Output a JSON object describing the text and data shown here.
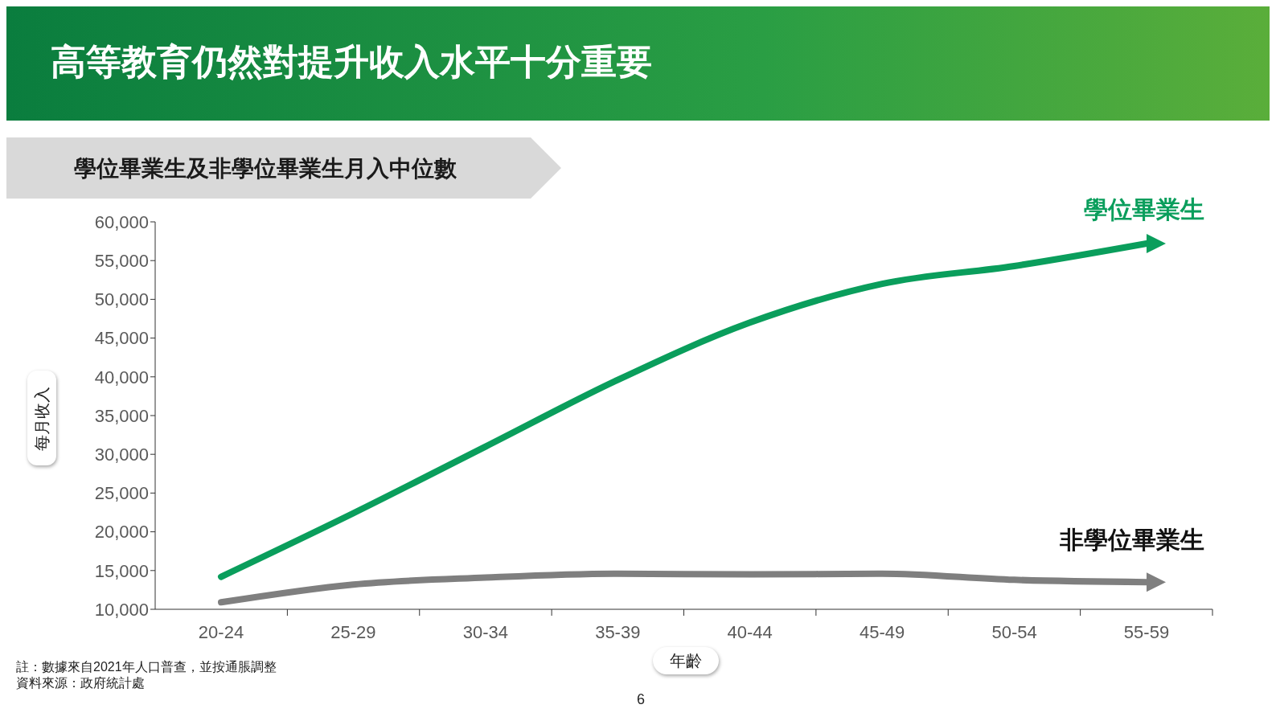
{
  "chart_data": {
    "type": "line",
    "title": "高等教育仍然對提升收入水平十分重要",
    "subtitle": "學位畢業生及非學位畢業生月入中位數",
    "xlabel": "年齡",
    "ylabel": "每月收入",
    "categories": [
      "20-24",
      "25-29",
      "30-34",
      "35-39",
      "40-44",
      "45-49",
      "50-54",
      "55-59"
    ],
    "series": [
      {
        "name": "學位畢業生",
        "color": "#0a9e5c",
        "values": [
          14200,
          22400,
          31000,
          39600,
          47000,
          52000,
          54300,
          57200
        ]
      },
      {
        "name": "非學位畢業生",
        "color": "#7f7f7f",
        "values": [
          10900,
          13200,
          14100,
          14600,
          14500,
          14600,
          13800,
          13500
        ]
      }
    ],
    "ylim": [
      10000,
      60000
    ],
    "yticks": [
      {
        "value": 10000,
        "label": "10,000"
      },
      {
        "value": 15000,
        "label": "15,000"
      },
      {
        "value": 20000,
        "label": "20,000"
      },
      {
        "value": 25000,
        "label": "25,000"
      },
      {
        "value": 30000,
        "label": "30,000"
      },
      {
        "value": 35000,
        "label": "35,000"
      },
      {
        "value": 40000,
        "label": "40,000"
      },
      {
        "value": 45000,
        "label": "45,000"
      },
      {
        "value": 50000,
        "label": "50,000"
      },
      {
        "value": 55000,
        "label": "55,000"
      },
      {
        "value": 60000,
        "label": "60,000"
      }
    ],
    "grid": false,
    "legend": false,
    "marker": "none",
    "line_style": "solid",
    "annotations": [
      "註：數據來自2021年人口普查，並按通脹調整",
      "資料來源：政府統計處",
      "6"
    ]
  }
}
